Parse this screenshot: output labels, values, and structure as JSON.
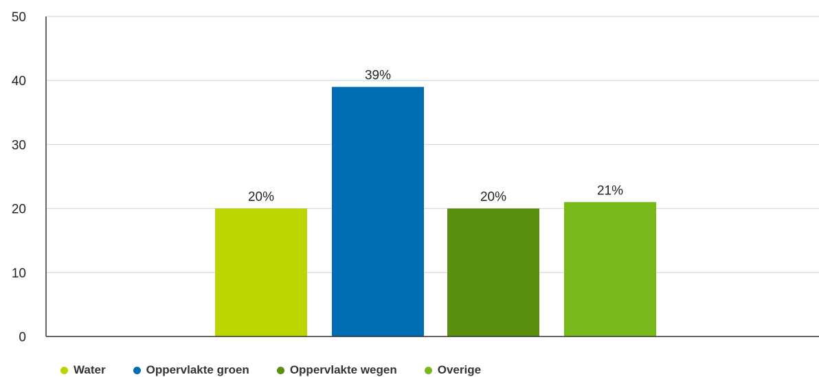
{
  "chart_data": {
    "type": "bar",
    "categories": [
      "Water",
      "Oppervlakte groen",
      "Oppervlakte wegen",
      "Overige"
    ],
    "values": [
      20,
      39,
      20,
      21
    ],
    "data_labels": [
      "20%",
      "39%",
      "20%",
      "21%"
    ],
    "colors": [
      "#bcd400",
      "#006eb4",
      "#5a900e",
      "#78b91a"
    ],
    "ylim": [
      0,
      50
    ],
    "yticks": [
      "0",
      "10",
      "20",
      "30",
      "40",
      "50"
    ],
    "grid": true,
    "legend_position": "bottom-left"
  },
  "legend": {
    "items": [
      {
        "label": "Water",
        "color": "#bcd400"
      },
      {
        "label": "Oppervlakte groen",
        "color": "#006eb4"
      },
      {
        "label": "Oppervlakte wegen",
        "color": "#5a900e"
      },
      {
        "label": "Overige",
        "color": "#78b91a"
      }
    ]
  }
}
